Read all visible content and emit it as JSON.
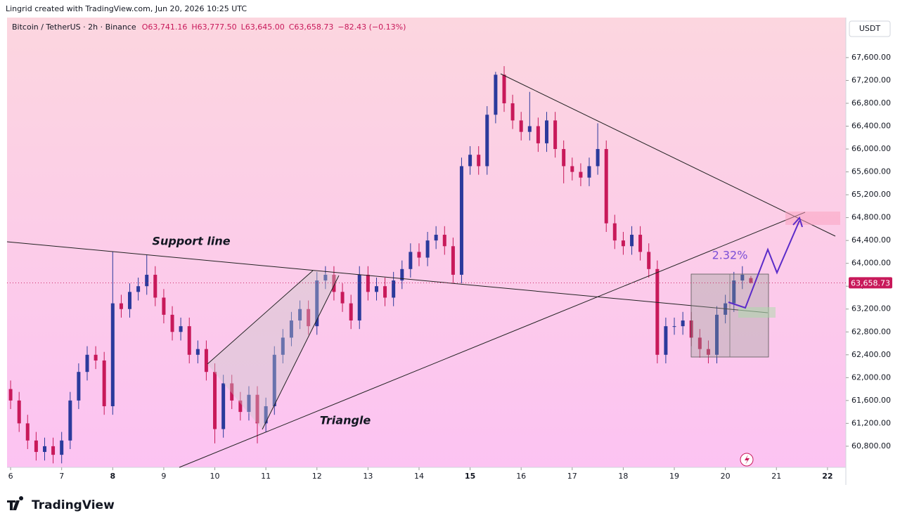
{
  "header": {
    "attribution": "Lingrid created with TradingView.com, Jun 20, 2026 10:25 UTC",
    "brand": "TradingView"
  },
  "chart_data": {
    "type": "candlestick",
    "symbol": "Bitcoin / TetherUS · 2h · Binance",
    "ohlc_text": [
      "O63,741.16",
      "H63,777.50",
      "L63,645.00",
      "C63,658.73"
    ],
    "change_text": "−82.43 (−0.13%)",
    "currency": "USDT",
    "up_color": "#2b3a9c",
    "down_color": "#c8195a",
    "annotations": [
      "Support line",
      "Triangle",
      "2.32%"
    ],
    "last_price": {
      "value": 63658.73,
      "label": "63,658.73"
    },
    "xlim": [
      5.93,
      22.36
    ],
    "xticks": [
      6,
      7,
      8,
      9,
      10,
      11,
      12,
      13,
      14,
      15,
      16,
      17,
      18,
      19,
      20,
      21,
      22
    ],
    "ylim": [
      60430,
      68300
    ],
    "yticks": [
      {
        "value": 60800,
        "label": "60,800.00"
      },
      {
        "value": 61200,
        "label": "61,200.00"
      },
      {
        "value": 61600,
        "label": "61,600.00"
      },
      {
        "value": 62000,
        "label": "62,000.00"
      },
      {
        "value": 62400,
        "label": "62,400.00"
      },
      {
        "value": 62800,
        "label": "62,800.00"
      },
      {
        "value": 63200,
        "label": "63,200.00"
      },
      {
        "value": 63600,
        "label": "63,600.00"
      },
      {
        "value": 64000,
        "label": "64,000.00"
      },
      {
        "value": 64400,
        "label": "64,400.00"
      },
      {
        "value": 64800,
        "label": "64,800.00"
      },
      {
        "value": 65200,
        "label": "65,200.00"
      },
      {
        "value": 65600,
        "label": "65,600.00"
      },
      {
        "value": 66000,
        "label": "66,000.00"
      },
      {
        "value": 66400,
        "label": "66,400.00"
      },
      {
        "value": 66800,
        "label": "66,800.00"
      },
      {
        "value": 67200,
        "label": "67,200.00"
      },
      {
        "value": 67600,
        "label": "67,600.00"
      }
    ],
    "x": [
      6,
      6.167,
      6.333,
      6.5,
      6.667,
      6.833,
      7,
      7.167,
      7.333,
      7.5,
      7.667,
      7.833,
      8,
      8.167,
      8.333,
      8.5,
      8.667,
      8.833,
      9,
      9.167,
      9.333,
      9.5,
      9.667,
      9.833,
      10,
      10.167,
      10.333,
      10.5,
      10.667,
      10.833,
      11,
      11.167,
      11.333,
      11.5,
      11.667,
      11.833,
      12,
      12.167,
      12.333,
      12.5,
      12.667,
      12.833,
      13,
      13.167,
      13.333,
      13.5,
      13.667,
      13.833,
      14,
      14.167,
      14.333,
      14.5,
      14.667,
      14.833,
      15,
      15.167,
      15.333,
      15.5,
      15.667,
      15.833,
      16,
      16.167,
      16.333,
      16.5,
      16.667,
      16.833,
      17,
      17.167,
      17.333,
      17.5,
      17.667,
      17.833,
      18,
      18.167,
      18.333,
      18.5,
      18.667,
      18.833,
      19,
      19.167,
      19.333,
      19.5,
      19.667,
      19.833,
      20,
      20.167,
      20.333,
      20.5
    ],
    "open": [
      61800,
      61600,
      61200,
      60900,
      60700,
      60800,
      60650,
      60900,
      61600,
      62100,
      62400,
      62300,
      61500,
      63300,
      63200,
      63500,
      63600,
      63800,
      63400,
      63100,
      62800,
      62900,
      62400,
      62500,
      62100,
      61100,
      61900,
      61600,
      61400,
      61700,
      61200,
      61500,
      62400,
      62700,
      63000,
      63200,
      62900,
      63700,
      63800,
      63500,
      63300,
      63000,
      63800,
      63500,
      63600,
      63400,
      63700,
      63900,
      64200,
      64100,
      64400,
      64500,
      64300,
      63800,
      65700,
      65900,
      65700,
      66600,
      67300,
      66800,
      66500,
      66300,
      66400,
      66100,
      66500,
      66000,
      65700,
      65600,
      65500,
      65700,
      66000,
      64700,
      64400,
      64300,
      64500,
      64200,
      63900,
      62400,
      62900,
      62900,
      63000,
      62700,
      62500,
      62400,
      63100,
      63300,
      63700,
      63741.16
    ],
    "high": [
      61950,
      61750,
      61350,
      61050,
      60950,
      60950,
      61050,
      61750,
      62250,
      62550,
      62550,
      62450,
      64200,
      63450,
      63650,
      63750,
      64150,
      63950,
      63550,
      63250,
      63050,
      63050,
      62650,
      62650,
      62250,
      62050,
      62050,
      61750,
      61850,
      61850,
      61650,
      62550,
      62850,
      63150,
      63350,
      63350,
      63850,
      63950,
      63950,
      63650,
      63450,
      63950,
      63950,
      63750,
      63750,
      63850,
      64050,
      64350,
      64350,
      64550,
      64650,
      64650,
      64450,
      65850,
      66050,
      66050,
      66750,
      67350,
      67450,
      66950,
      66650,
      67000,
      66550,
      66650,
      66650,
      66150,
      65850,
      65750,
      65850,
      66450,
      66150,
      64850,
      64550,
      64650,
      64650,
      64350,
      64050,
      63050,
      63050,
      63150,
      63150,
      62850,
      62650,
      63250,
      63450,
      63850,
      63950,
      63777.5
    ],
    "low": [
      61450,
      61050,
      60750,
      60550,
      60550,
      60500,
      60500,
      60750,
      61450,
      61950,
      62150,
      61350,
      61350,
      63050,
      63050,
      63350,
      63450,
      63250,
      62950,
      62650,
      62650,
      62250,
      62250,
      61950,
      60850,
      60950,
      61450,
      61250,
      61250,
      60850,
      61050,
      61350,
      62250,
      62550,
      62850,
      62750,
      62750,
      63550,
      63350,
      63150,
      62850,
      62850,
      63350,
      63350,
      63250,
      63250,
      63550,
      63750,
      63950,
      63950,
      64250,
      64150,
      63650,
      63650,
      65550,
      65550,
      65550,
      66450,
      66650,
      66350,
      66150,
      66150,
      65950,
      65950,
      65850,
      65400,
      65450,
      65350,
      65350,
      65550,
      64550,
      64250,
      64150,
      64150,
      64050,
      63750,
      62250,
      62250,
      62750,
      62750,
      62550,
      62350,
      62250,
      62250,
      62950,
      63150,
      63550,
      63645
    ],
    "close": [
      61600,
      61200,
      60900,
      60700,
      60800,
      60650,
      60900,
      61600,
      62100,
      62400,
      62300,
      61500,
      63300,
      63200,
      63500,
      63600,
      63800,
      63400,
      63100,
      62800,
      62900,
      62400,
      62500,
      62100,
      61100,
      61900,
      61600,
      61400,
      61700,
      61200,
      61500,
      62400,
      62700,
      63000,
      63200,
      62900,
      63700,
      63800,
      63500,
      63300,
      63000,
      63800,
      63500,
      63600,
      63400,
      63700,
      63900,
      64200,
      64100,
      64400,
      64500,
      64300,
      63800,
      65700,
      65900,
      65700,
      66600,
      67300,
      66800,
      66500,
      66300,
      66400,
      66100,
      66500,
      66000,
      65700,
      65600,
      65500,
      65700,
      66000,
      64700,
      64400,
      64300,
      64500,
      64200,
      63900,
      62400,
      62900,
      62900,
      63000,
      62700,
      62500,
      62400,
      63100,
      63300,
      63700,
      63800,
      63658.73
    ]
  }
}
